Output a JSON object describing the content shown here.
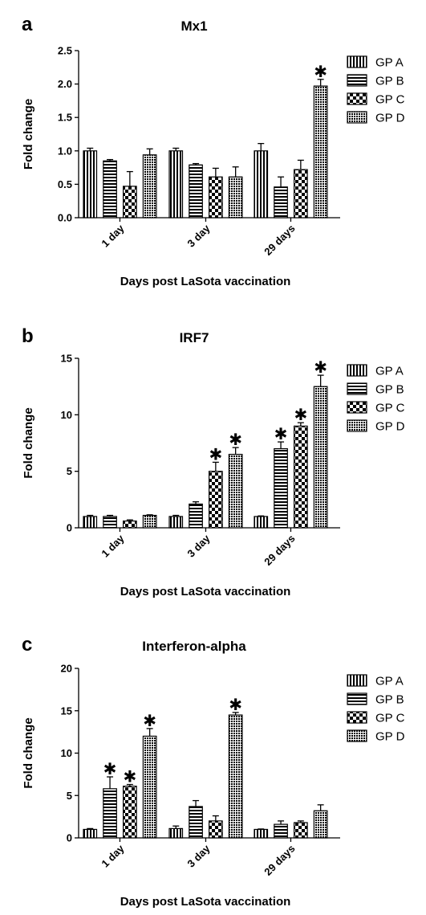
{
  "chart_data": [
    {
      "type": "bar",
      "panel": "a",
      "title": "Mx1",
      "xlabel": "Days post LaSota vaccination",
      "ylabel": "Fold change",
      "categories": [
        "1 day",
        "3 day",
        "29 days"
      ],
      "ylim": [
        0,
        2.5
      ],
      "yticks": [
        "0.0",
        "0.5",
        "1.0",
        "1.5",
        "2.0",
        "2.5"
      ],
      "series": [
        {
          "name": "GP A",
          "values": [
            1.0,
            1.0,
            1.0
          ],
          "errors": [
            0.04,
            0.04,
            0.11
          ],
          "significant": [
            false,
            false,
            false
          ]
        },
        {
          "name": "GP B",
          "values": [
            0.85,
            0.79,
            0.46
          ],
          "errors": [
            0.02,
            0.02,
            0.15
          ],
          "significant": [
            false,
            false,
            false
          ]
        },
        {
          "name": "GP C",
          "values": [
            0.47,
            0.61,
            0.72
          ],
          "errors": [
            0.22,
            0.13,
            0.14
          ],
          "significant": [
            false,
            false,
            false
          ]
        },
        {
          "name": "GP D",
          "values": [
            0.94,
            0.61,
            1.97
          ],
          "errors": [
            0.09,
            0.15,
            0.1
          ],
          "significant": [
            false,
            false,
            true
          ]
        }
      ],
      "legend": "right",
      "significance_marker": "✱"
    },
    {
      "type": "bar",
      "panel": "b",
      "title": "IRF7",
      "xlabel": "Days post LaSota vaccination",
      "ylabel": "Fold change",
      "categories": [
        "1 day",
        "3 day",
        "29 days"
      ],
      "ylim": [
        0,
        15
      ],
      "yticks": [
        "0",
        "5",
        "10",
        "15"
      ],
      "series": [
        {
          "name": "GP A",
          "values": [
            1.0,
            1.0,
            1.0
          ],
          "errors": [
            0.1,
            0.1,
            0.05
          ],
          "significant": [
            false,
            false,
            false
          ]
        },
        {
          "name": "GP B",
          "values": [
            1.0,
            2.1,
            7.0
          ],
          "errors": [
            0.1,
            0.2,
            0.6
          ],
          "significant": [
            false,
            false,
            true
          ]
        },
        {
          "name": "GP C",
          "values": [
            0.6,
            5.0,
            9.0
          ],
          "errors": [
            0.1,
            0.8,
            0.3
          ],
          "significant": [
            false,
            true,
            true
          ]
        },
        {
          "name": "GP D",
          "values": [
            1.1,
            6.5,
            12.5
          ],
          "errors": [
            0.05,
            0.6,
            1.0
          ],
          "significant": [
            false,
            true,
            true
          ]
        }
      ],
      "legend": "right",
      "significance_marker": "✱"
    },
    {
      "type": "bar",
      "panel": "c",
      "title": "Interferon-alpha",
      "xlabel": "Days post LaSota vaccination",
      "ylabel": "Fold change",
      "categories": [
        "1 day",
        "3 day",
        "29 days"
      ],
      "ylim": [
        0,
        20
      ],
      "yticks": [
        "0",
        "5",
        "10",
        "15",
        "20"
      ],
      "series": [
        {
          "name": "GP A",
          "values": [
            1.0,
            1.1,
            1.0
          ],
          "errors": [
            0.1,
            0.3,
            0.05
          ],
          "significant": [
            false,
            false,
            false
          ]
        },
        {
          "name": "GP B",
          "values": [
            5.8,
            3.7,
            1.6
          ],
          "errors": [
            1.4,
            0.7,
            0.4
          ],
          "significant": [
            true,
            false,
            false
          ]
        },
        {
          "name": "GP C",
          "values": [
            6.1,
            2.0,
            1.8
          ],
          "errors": [
            0.2,
            0.6,
            0.2
          ],
          "significant": [
            true,
            false,
            false
          ]
        },
        {
          "name": "GP D",
          "values": [
            12.0,
            14.5,
            3.2
          ],
          "errors": [
            0.9,
            0.3,
            0.7
          ],
          "significant": [
            true,
            true,
            false
          ]
        }
      ],
      "legend": "right",
      "significance_marker": "✱"
    }
  ]
}
